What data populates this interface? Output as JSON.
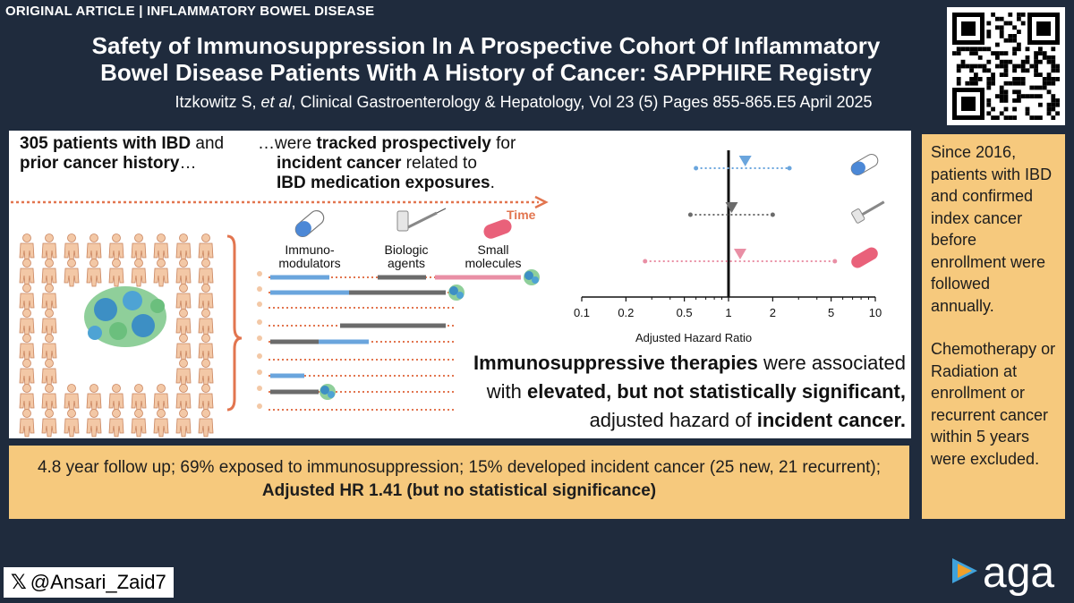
{
  "header": {
    "tag": "ORIGINAL ARTICLE | INFLAMMATORY BOWEL DISEASE",
    "title_line1": "Safety of Immunosuppression In A Prospective Cohort Of Inflammatory",
    "title_line2": "Bowel Disease Patients With A History of Cancer: SAPPHIRE Registry",
    "citation_authors": "Itzkowitz S, ",
    "citation_etal": "et al",
    "citation_rest": ", Clinical Gastroenterology & Hepatology, Vol 23 (5) Pages 855-865.E5  April 2025"
  },
  "panel": {
    "patients_bold1": "305 patients with IBD",
    "patients_plain1": " and",
    "patients_bold2": "prior cancer history",
    "patients_plain2": "…",
    "tracked_plain1": "…were ",
    "tracked_bold1": "tracked prospectively",
    "tracked_plain2": " for",
    "tracked_bold2": "incident cancer",
    "tracked_plain3": " related to",
    "tracked_bold3": "IBD medication exposures",
    "tracked_plain4": ".",
    "time_label": "Time",
    "legend": [
      {
        "label1": "Immuno-",
        "label2": "modulators",
        "color": "#6aa5dd"
      },
      {
        "label1": "Biologic",
        "label2": "agents",
        "color": "#6b6b6b"
      },
      {
        "label1": "Small",
        "label2": "molecules",
        "color": "#e98fa5"
      }
    ],
    "conclusion_bold1": "Immunosuppressive therapies",
    "conclusion_plain1": " were associated",
    "conclusion_plain2": "with ",
    "conclusion_bold2": "elevated, but not statistically significant,",
    "conclusion_plain3": "adjusted hazard of ",
    "conclusion_bold3": "incident cancer."
  },
  "chart_data": {
    "type": "scatter",
    "xlabel": "Adjusted Hazard Ratio",
    "xscale": "log",
    "xlim": [
      0.1,
      10
    ],
    "ticks": [
      "0.1",
      "0.2",
      "0.5",
      "1",
      "2",
      "5",
      "10"
    ],
    "tick_values": [
      0.1,
      0.2,
      0.5,
      1,
      2,
      5,
      10
    ],
    "reference_line": 1,
    "series": [
      {
        "estimate": 1.3,
        "ci": [
          0.6,
          2.6
        ],
        "color": "#6aa5dd",
        "icon": "pill-capsule-icon"
      },
      {
        "estimate": 1.05,
        "ci": [
          0.55,
          2.0
        ],
        "color": "#6b6b6b",
        "icon": "syringe-vial-icon"
      },
      {
        "estimate": 1.2,
        "ci": [
          0.27,
          5.3
        ],
        "color": "#e98fa5",
        "icon": "tablet-icon"
      }
    ]
  },
  "sidebar": {
    "para1": "Since 2016, patients with IBD and confirmed index cancer before enrollment were followed annually.",
    "para2": "Chemotherapy or Radiation at enrollment or recurrent cancer within 5 years were excluded."
  },
  "summary": {
    "plain": "4.8 year follow up; 69% exposed to immunosuppression; 15% developed incident cancer (25 new, 21 recurrent); ",
    "bold": "Adjusted HR 1.41 (but no statistical significance)"
  },
  "footer": {
    "x_logo": "𝕏",
    "handle": "@Ansari_Zaid7",
    "brand": "aga"
  },
  "colors": {
    "background": "#1f2b3d",
    "accent_box": "#f6c97d",
    "time_arrow": "#e2754f",
    "person": "#f3c8a6",
    "person_outline": "#c9845e"
  }
}
